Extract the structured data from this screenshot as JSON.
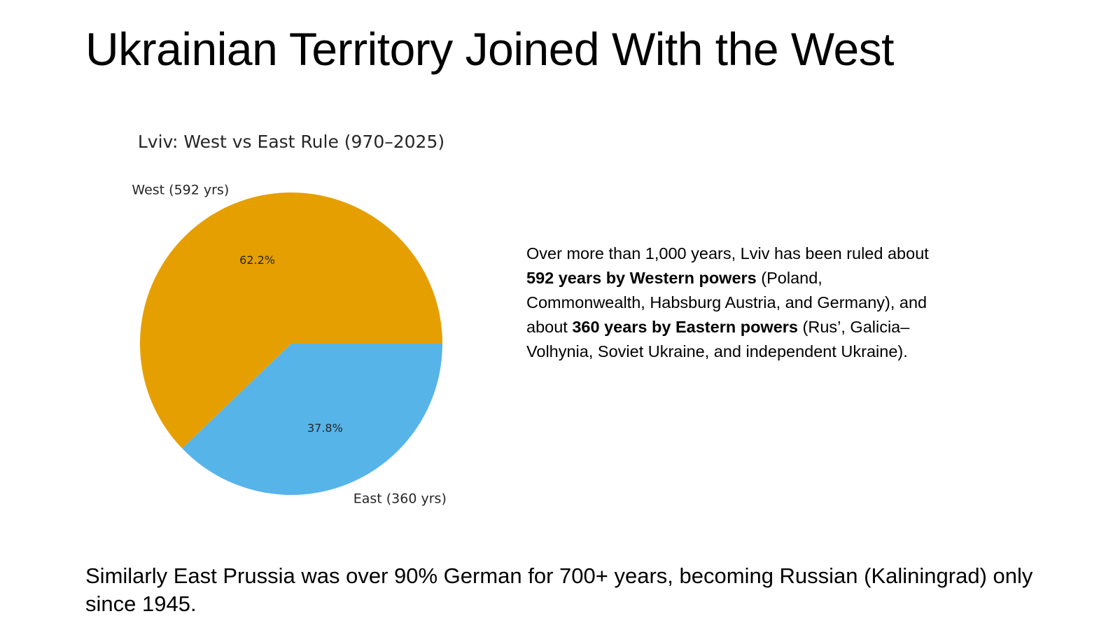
{
  "slide": {
    "title": "Ukrainian Territory Joined With the West"
  },
  "description": {
    "part1": "Over more than 1,000 years, Lviv has been ruled about ",
    "bold1": "592 years by Western powers",
    "part2": " (Poland, Commonwealth, Habsburg Austria, and Germany), and about ",
    "bold2": "360 years by Eastern powers",
    "part3": " (Rus’, Galicia–Volhynia, Soviet Ukraine, and independent Ukraine)."
  },
  "footer": {
    "text": "Similarly East Prussia was over 90% German for 700+ years, becoming Russian (Kaliningrad) only since 1945."
  },
  "chart_data": {
    "type": "pie",
    "title": "Lviv: West vs East Rule (970–2025)",
    "slices": [
      {
        "label": "West (592 yrs)",
        "value": 592,
        "percent_label": "62.2%",
        "color": "#E69F00"
      },
      {
        "label": "East (360 yrs)",
        "value": 360,
        "percent_label": "37.8%",
        "color": "#56B4E9"
      }
    ],
    "start_angle_deg": 0,
    "direction": "counterclockwise",
    "legend": "none"
  }
}
